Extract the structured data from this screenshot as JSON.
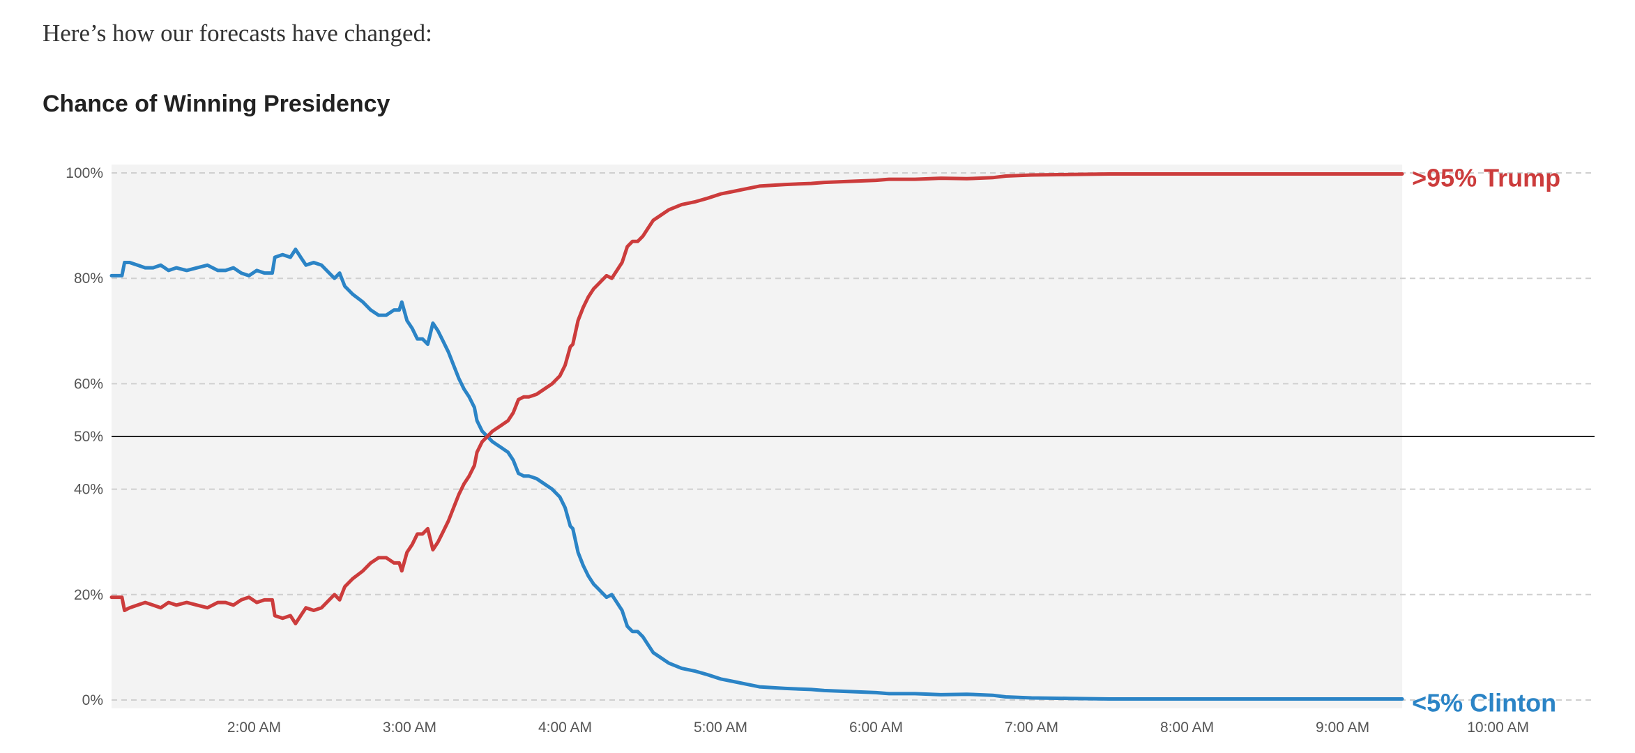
{
  "intro_text": "Here’s how our forecasts have changed:",
  "chart_data": {
    "type": "line",
    "title": "Chance of Winning Presidency",
    "xlabel": "",
    "ylabel": "",
    "x_axis": {
      "start_time": "1:05 AM",
      "end_time": "10:20 AM",
      "ticks": [
        "2:00 AM",
        "3:00 AM",
        "4:00 AM",
        "5:00 AM",
        "6:00 AM",
        "7:00 AM",
        "8:00 AM",
        "9:00 AM",
        "10:00 AM"
      ]
    },
    "y_axis": {
      "ylim": [
        0,
        100
      ],
      "ticks": [
        {
          "value": 0,
          "label": "0%"
        },
        {
          "value": 20,
          "label": "20%"
        },
        {
          "value": 40,
          "label": "40%"
        },
        {
          "value": 50,
          "label": "50%"
        },
        {
          "value": 60,
          "label": "60%"
        },
        {
          "value": 80,
          "label": "80%"
        },
        {
          "value": 100,
          "label": "100%"
        }
      ],
      "reference_line": 50
    },
    "shaded_region_end": "9:23 AM",
    "grid": "dashed horizontal",
    "series": [
      {
        "name": "Clinton",
        "end_label": "<5% Clinton",
        "color": "#2b84c6",
        "points": [
          [
            "1:05 AM",
            80.5
          ],
          [
            "1:09 AM",
            80.5
          ],
          [
            "1:10 AM",
            83
          ],
          [
            "1:12 AM",
            83
          ],
          [
            "1:15 AM",
            82.5
          ],
          [
            "1:18 AM",
            82
          ],
          [
            "1:21 AM",
            82
          ],
          [
            "1:24 AM",
            82.5
          ],
          [
            "1:27 AM",
            81.5
          ],
          [
            "1:30 AM",
            82
          ],
          [
            "1:34 AM",
            81.5
          ],
          [
            "1:38 AM",
            82
          ],
          [
            "1:42 AM",
            82.5
          ],
          [
            "1:46 AM",
            81.5
          ],
          [
            "1:49 AM",
            81.5
          ],
          [
            "1:52 AM",
            82
          ],
          [
            "1:55 AM",
            81
          ],
          [
            "1:58 AM",
            80.5
          ],
          [
            "2:01 AM",
            81.5
          ],
          [
            "2:04 AM",
            81
          ],
          [
            "2:07 AM",
            81
          ],
          [
            "2:08 AM",
            84
          ],
          [
            "2:11 AM",
            84.5
          ],
          [
            "2:14 AM",
            84
          ],
          [
            "2:16 AM",
            85.5
          ],
          [
            "2:18 AM",
            84
          ],
          [
            "2:20 AM",
            82.5
          ],
          [
            "2:23 AM",
            83
          ],
          [
            "2:26 AM",
            82.5
          ],
          [
            "2:29 AM",
            81
          ],
          [
            "2:31 AM",
            80
          ],
          [
            "2:33 AM",
            81
          ],
          [
            "2:35 AM",
            78.5
          ],
          [
            "2:38 AM",
            77
          ],
          [
            "2:42 AM",
            75.5
          ],
          [
            "2:45 AM",
            74
          ],
          [
            "2:48 AM",
            73
          ],
          [
            "2:51 AM",
            73
          ],
          [
            "2:54 AM",
            74
          ],
          [
            "2:56 AM",
            74
          ],
          [
            "2:57 AM",
            75.5
          ],
          [
            "2:59 AM",
            72
          ],
          [
            "3:01 AM",
            70.5
          ],
          [
            "3:03 AM",
            68.5
          ],
          [
            "3:05 AM",
            68.5
          ],
          [
            "3:07 AM",
            67.5
          ],
          [
            "3:09 AM",
            71.5
          ],
          [
            "3:11 AM",
            70
          ],
          [
            "3:13 AM",
            68
          ],
          [
            "3:15 AM",
            66
          ],
          [
            "3:17 AM",
            63.5
          ],
          [
            "3:19 AM",
            61
          ],
          [
            "3:21 AM",
            59
          ],
          [
            "3:23 AM",
            57.5
          ],
          [
            "3:25 AM",
            55.5
          ],
          [
            "3:26 AM",
            53
          ],
          [
            "3:28 AM",
            51
          ],
          [
            "3:30 AM",
            50
          ],
          [
            "3:32 AM",
            49
          ],
          [
            "3:35 AM",
            48
          ],
          [
            "3:38 AM",
            47
          ],
          [
            "3:40 AM",
            45.5
          ],
          [
            "3:42 AM",
            43
          ],
          [
            "3:44 AM",
            42.5
          ],
          [
            "3:46 AM",
            42.5
          ],
          [
            "3:49 AM",
            42
          ],
          [
            "3:52 AM",
            41
          ],
          [
            "3:55 AM",
            40
          ],
          [
            "3:58 AM",
            38.5
          ],
          [
            "4:00 AM",
            36.5
          ],
          [
            "4:02 AM",
            33
          ],
          [
            "4:03 AM",
            32.5
          ],
          [
            "4:05 AM",
            28
          ],
          [
            "4:07 AM",
            25.5
          ],
          [
            "4:09 AM",
            23.5
          ],
          [
            "4:11 AM",
            22
          ],
          [
            "4:13 AM",
            21
          ],
          [
            "4:16 AM",
            19.5
          ],
          [
            "4:18 AM",
            20
          ],
          [
            "4:20 AM",
            18.5
          ],
          [
            "4:22 AM",
            17
          ],
          [
            "4:24 AM",
            14
          ],
          [
            "4:26 AM",
            13
          ],
          [
            "4:28 AM",
            13
          ],
          [
            "4:30 AM",
            12
          ],
          [
            "4:32 AM",
            10.5
          ],
          [
            "4:34 AM",
            9
          ],
          [
            "4:37 AM",
            8
          ],
          [
            "4:40 AM",
            7
          ],
          [
            "4:45 AM",
            6
          ],
          [
            "4:50 AM",
            5.5
          ],
          [
            "4:55 AM",
            4.8
          ],
          [
            "5:00 AM",
            4
          ],
          [
            "5:05 AM",
            3.5
          ],
          [
            "5:10 AM",
            3
          ],
          [
            "5:15 AM",
            2.5
          ],
          [
            "5:25 AM",
            2.2
          ],
          [
            "5:35 AM",
            2
          ],
          [
            "5:40 AM",
            1.8
          ],
          [
            "5:50 AM",
            1.6
          ],
          [
            "6:00 AM",
            1.4
          ],
          [
            "6:05 AM",
            1.2
          ],
          [
            "6:15 AM",
            1.2
          ],
          [
            "6:25 AM",
            1
          ],
          [
            "6:35 AM",
            1.1
          ],
          [
            "6:45 AM",
            0.9
          ],
          [
            "6:50 AM",
            0.6
          ],
          [
            "7:00 AM",
            0.4
          ],
          [
            "7:15 AM",
            0.3
          ],
          [
            "7:30 AM",
            0.2
          ],
          [
            "8:00 AM",
            0.2
          ],
          [
            "9:23 AM",
            0.2
          ]
        ]
      },
      {
        "name": "Trump",
        "end_label": ">95% Trump",
        "color": "#cc3c3c",
        "points": [
          [
            "1:05 AM",
            19.5
          ],
          [
            "1:09 AM",
            19.5
          ],
          [
            "1:10 AM",
            17
          ],
          [
            "1:12 AM",
            17.5
          ],
          [
            "1:15 AM",
            18
          ],
          [
            "1:18 AM",
            18.5
          ],
          [
            "1:21 AM",
            18
          ],
          [
            "1:24 AM",
            17.5
          ],
          [
            "1:27 AM",
            18.5
          ],
          [
            "1:30 AM",
            18
          ],
          [
            "1:34 AM",
            18.5
          ],
          [
            "1:38 AM",
            18
          ],
          [
            "1:42 AM",
            17.5
          ],
          [
            "1:46 AM",
            18.5
          ],
          [
            "1:49 AM",
            18.5
          ],
          [
            "1:52 AM",
            18
          ],
          [
            "1:55 AM",
            19
          ],
          [
            "1:58 AM",
            19.5
          ],
          [
            "2:01 AM",
            18.5
          ],
          [
            "2:04 AM",
            19
          ],
          [
            "2:07 AM",
            19
          ],
          [
            "2:08 AM",
            16
          ],
          [
            "2:11 AM",
            15.5
          ],
          [
            "2:14 AM",
            16
          ],
          [
            "2:16 AM",
            14.5
          ],
          [
            "2:18 AM",
            16
          ],
          [
            "2:20 AM",
            17.5
          ],
          [
            "2:23 AM",
            17
          ],
          [
            "2:26 AM",
            17.5
          ],
          [
            "2:29 AM",
            19
          ],
          [
            "2:31 AM",
            20
          ],
          [
            "2:33 AM",
            19
          ],
          [
            "2:35 AM",
            21.5
          ],
          [
            "2:38 AM",
            23
          ],
          [
            "2:42 AM",
            24.5
          ],
          [
            "2:45 AM",
            26
          ],
          [
            "2:48 AM",
            27
          ],
          [
            "2:51 AM",
            27
          ],
          [
            "2:54 AM",
            26
          ],
          [
            "2:56 AM",
            26
          ],
          [
            "2:57 AM",
            24.5
          ],
          [
            "2:59 AM",
            28
          ],
          [
            "3:01 AM",
            29.5
          ],
          [
            "3:03 AM",
            31.5
          ],
          [
            "3:05 AM",
            31.5
          ],
          [
            "3:07 AM",
            32.5
          ],
          [
            "3:09 AM",
            28.5
          ],
          [
            "3:11 AM",
            30
          ],
          [
            "3:13 AM",
            32
          ],
          [
            "3:15 AM",
            34
          ],
          [
            "3:17 AM",
            36.5
          ],
          [
            "3:19 AM",
            39
          ],
          [
            "3:21 AM",
            41
          ],
          [
            "3:23 AM",
            42.5
          ],
          [
            "3:25 AM",
            44.5
          ],
          [
            "3:26 AM",
            47
          ],
          [
            "3:28 AM",
            49
          ],
          [
            "3:30 AM",
            50
          ],
          [
            "3:32 AM",
            51
          ],
          [
            "3:35 AM",
            52
          ],
          [
            "3:38 AM",
            53
          ],
          [
            "3:40 AM",
            54.5
          ],
          [
            "3:42 AM",
            57
          ],
          [
            "3:44 AM",
            57.5
          ],
          [
            "3:46 AM",
            57.5
          ],
          [
            "3:49 AM",
            58
          ],
          [
            "3:52 AM",
            59
          ],
          [
            "3:55 AM",
            60
          ],
          [
            "3:58 AM",
            61.5
          ],
          [
            "4:00 AM",
            63.5
          ],
          [
            "4:02 AM",
            67
          ],
          [
            "4:03 AM",
            67.5
          ],
          [
            "4:05 AM",
            72
          ],
          [
            "4:07 AM",
            74.5
          ],
          [
            "4:09 AM",
            76.5
          ],
          [
            "4:11 AM",
            78
          ],
          [
            "4:13 AM",
            79
          ],
          [
            "4:16 AM",
            80.5
          ],
          [
            "4:18 AM",
            80
          ],
          [
            "4:20 AM",
            81.5
          ],
          [
            "4:22 AM",
            83
          ],
          [
            "4:24 AM",
            86
          ],
          [
            "4:26 AM",
            87
          ],
          [
            "4:28 AM",
            87
          ],
          [
            "4:30 AM",
            88
          ],
          [
            "4:32 AM",
            89.5
          ],
          [
            "4:34 AM",
            91
          ],
          [
            "4:37 AM",
            92
          ],
          [
            "4:40 AM",
            93
          ],
          [
            "4:45 AM",
            94
          ],
          [
            "4:50 AM",
            94.5
          ],
          [
            "4:55 AM",
            95.2
          ],
          [
            "5:00 AM",
            96
          ],
          [
            "5:05 AM",
            96.5
          ],
          [
            "5:10 AM",
            97
          ],
          [
            "5:15 AM",
            97.5
          ],
          [
            "5:25 AM",
            97.8
          ],
          [
            "5:35 AM",
            98
          ],
          [
            "5:40 AM",
            98.2
          ],
          [
            "5:50 AM",
            98.4
          ],
          [
            "6:00 AM",
            98.6
          ],
          [
            "6:05 AM",
            98.8
          ],
          [
            "6:15 AM",
            98.8
          ],
          [
            "6:25 AM",
            99
          ],
          [
            "6:35 AM",
            98.9
          ],
          [
            "6:45 AM",
            99.1
          ],
          [
            "6:50 AM",
            99.4
          ],
          [
            "7:00 AM",
            99.6
          ],
          [
            "7:15 AM",
            99.7
          ],
          [
            "7:30 AM",
            99.8
          ],
          [
            "8:00 AM",
            99.8
          ],
          [
            "9:23 AM",
            99.8
          ]
        ]
      }
    ]
  }
}
